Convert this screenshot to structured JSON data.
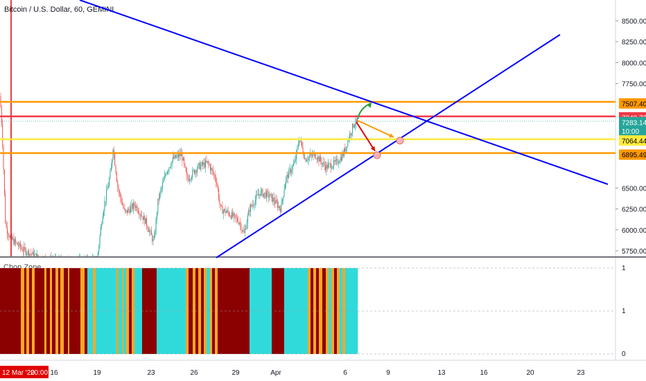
{
  "header": {
    "title": "Bitcoin / U.S. Dollar, 60, GEMINI"
  },
  "indicator": {
    "label": "Chop Zone"
  },
  "price_axis": {
    "ticks": [
      "8500.00",
      "8250.00",
      "8000.00",
      "7750.00",
      "6500.00",
      "6250.00",
      "6000.00",
      "5750.00"
    ],
    "tick_values": [
      8500,
      8250,
      8000,
      7750,
      6500,
      6250,
      6000,
      5750
    ],
    "range": [
      5620,
      8720
    ]
  },
  "indicator_axis": {
    "ticks": [
      "1",
      "1",
      "0"
    ]
  },
  "price_labels": [
    {
      "text": "7507.40",
      "value": 7507.4,
      "bg": "#ff9800",
      "fg": "#000000"
    },
    {
      "text": "7340.73",
      "value": 7340.73,
      "bg": "#f23645",
      "fg": "#ffffff"
    },
    {
      "text": "7283.14",
      "value": 7283.14,
      "bg": "#26a69a",
      "fg": "#ffffff"
    },
    {
      "text": "10:00",
      "value": 7180,
      "bg": "#26a69a",
      "fg": "#ffffff"
    },
    {
      "text": "7064.44",
      "value": 7064.44,
      "bg": "#ffeb3b",
      "fg": "#000000"
    },
    {
      "text": "6895.49",
      "value": 6895.49,
      "bg": "#ff9800",
      "fg": "#000000"
    }
  ],
  "time_axis": {
    "labels": [
      "16",
      "19",
      "23",
      "26",
      "29",
      "Apr",
      "6",
      "9",
      "13",
      "16",
      "20",
      "23"
    ],
    "current": "12 Mar '20",
    "current_time": "20:00"
  },
  "colors": {
    "trendline": "#0000ff",
    "orange_line": "#ff9800",
    "red_line": "#f23645",
    "yellow_line": "#ffeb3b",
    "chop_dark": "#8b0000",
    "chop_cyan": "#31dada",
    "chop_orange": "#ffa726"
  }
}
